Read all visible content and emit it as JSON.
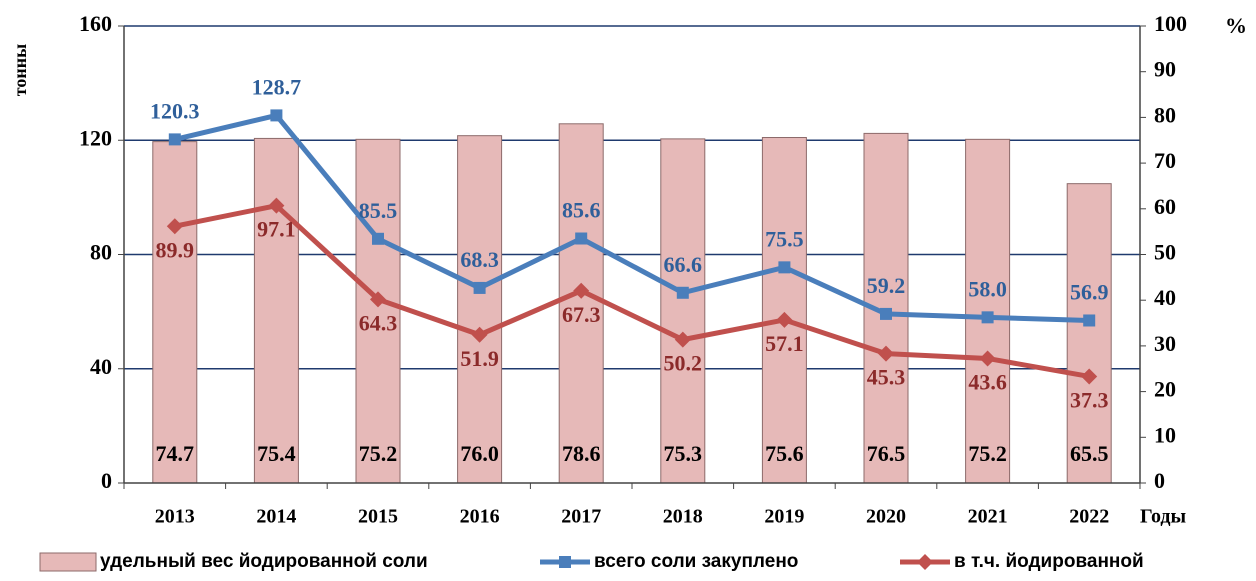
{
  "chart_data": {
    "type": "bar_line",
    "y_label": "тонны",
    "y2_label": "%",
    "x_label": "Годы",
    "categories": [
      "2013",
      "2014",
      "2015",
      "2016",
      "2017",
      "2018",
      "2019",
      "2020",
      "2021",
      "2022"
    ],
    "ylim": [
      0,
      160
    ],
    "yticks": [
      0,
      40,
      80,
      120,
      160
    ],
    "y2lim": [
      0,
      100
    ],
    "y2ticks": [
      0,
      10,
      20,
      30,
      40,
      50,
      60,
      70,
      80,
      90,
      100
    ],
    "grid": true,
    "legend": "bottom",
    "series": [
      {
        "name": "удельный вес йодированной соли",
        "type": "bar",
        "axis": "y2",
        "color": "#e6b9b8",
        "values": [
          74.7,
          75.4,
          75.2,
          76.0,
          78.6,
          75.3,
          75.6,
          76.5,
          75.2,
          65.5
        ],
        "value_labels": [
          "74.7",
          "75.4",
          "75.2",
          "76.0",
          "78.6",
          "75.3",
          "75.6",
          "76.5",
          "75.2",
          "65.5"
        ]
      },
      {
        "name": "всего соли закуплено",
        "type": "line",
        "marker": "square",
        "color": "#4a7ebb",
        "values": [
          120.3,
          128.7,
          85.5,
          68.3,
          85.6,
          66.6,
          75.5,
          59.2,
          58.0,
          56.9
        ],
        "value_labels": [
          "120.3",
          "128.7",
          "85.5",
          "68.3",
          "85.6",
          "66.6",
          "75.5",
          "59.2",
          "58.0",
          "56.9"
        ]
      },
      {
        "name": "в т.ч. йодированной",
        "type": "line",
        "marker": "diamond",
        "color": "#c0504d",
        "values": [
          89.9,
          97.1,
          64.3,
          51.9,
          67.3,
          50.2,
          57.1,
          45.3,
          43.6,
          37.3
        ],
        "value_labels": [
          "89.9",
          "97.1",
          "64.3",
          "51.9",
          "67.3",
          "50.2",
          "57.1",
          "45.3",
          "43.6",
          "37.3"
        ]
      }
    ]
  }
}
